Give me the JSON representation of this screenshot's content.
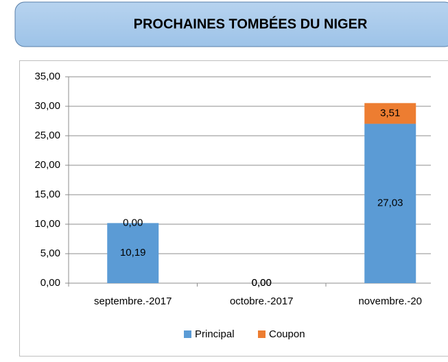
{
  "chart_data": {
    "type": "stacked_bar",
    "title": "PROCHAINES TOMBÉES DU NIGER",
    "categories": [
      "septembre.-2017",
      "octobre.-2017",
      "novembre.-20"
    ],
    "series": [
      {
        "name": "Principal",
        "color": "#5b9bd5",
        "values": [
          10.19,
          0,
          27.03
        ],
        "value_labels": [
          "10,19",
          "0,00",
          "27,03"
        ]
      },
      {
        "name": "Coupon",
        "color": "#ed7d31",
        "values": [
          0,
          0,
          3.51
        ],
        "value_labels": [
          "0,00",
          "0,00",
          "3,51"
        ]
      }
    ],
    "ylim": [
      0,
      35
    ],
    "yticks": [
      {
        "value": 0,
        "label": "0,00"
      },
      {
        "value": 5,
        "label": "5,00"
      },
      {
        "value": 10,
        "label": "10,00"
      },
      {
        "value": 15,
        "label": "15,00"
      },
      {
        "value": 20,
        "label": "20,00"
      },
      {
        "value": 25,
        "label": "25,00"
      },
      {
        "value": 30,
        "label": "30,00"
      },
      {
        "value": 35,
        "label": "35,00"
      }
    ],
    "grid": true,
    "legend": "bottom"
  }
}
